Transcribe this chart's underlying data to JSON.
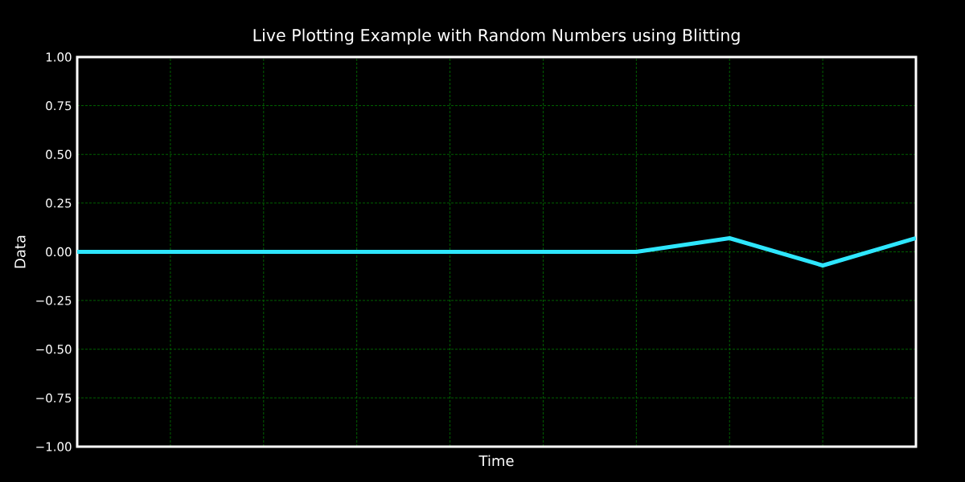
{
  "chart_data": {
    "type": "line",
    "title": "Live Plotting Example with Random Numbers using Blitting",
    "xlabel": "Time",
    "ylabel": "Data",
    "categories": [
      null,
      null,
      null,
      null,
      null,
      null,
      null,
      null,
      null,
      null
    ],
    "series": [
      {
        "color": "#2ee6ff",
        "values": [
          0,
          0,
          0,
          0,
          0,
          0,
          0,
          0.07,
          -0.07,
          0.07
        ]
      }
    ],
    "ylim": [
      -1,
      1
    ],
    "yticks": [
      {
        "value": -1,
        "label": "−1.00"
      },
      {
        "value": -0.75,
        "label": "−0.75"
      },
      {
        "value": -0.5,
        "label": "−0.50"
      },
      {
        "value": -0.25,
        "label": "−0.25"
      },
      {
        "value": 0,
        "label": "0.00"
      },
      {
        "value": 0.25,
        "label": "0.25"
      },
      {
        "value": 0.5,
        "label": "0.50"
      },
      {
        "value": 0.75,
        "label": "0.75"
      },
      {
        "value": 1,
        "label": "1.00"
      }
    ],
    "grid": true
  }
}
